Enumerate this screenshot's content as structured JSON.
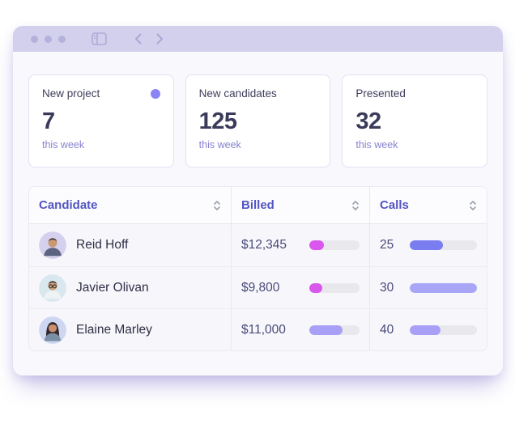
{
  "titlebar": {
    "icons": [
      "traffic-light-dots",
      "sidebar-toggle-icon",
      "back-chevron-icon",
      "forward-chevron-icon"
    ]
  },
  "stats": [
    {
      "label": "New project",
      "value": "7",
      "caption": "this week",
      "dot": true
    },
    {
      "label": "New candidates",
      "value": "125",
      "caption": "this week",
      "dot": false
    },
    {
      "label": "Presented",
      "value": "32",
      "caption": "this week",
      "dot": false
    }
  ],
  "table": {
    "columns": [
      {
        "label": "Candidate",
        "sortable": true
      },
      {
        "label": "Billed",
        "sortable": true
      },
      {
        "label": "Calls",
        "sortable": true
      }
    ],
    "rows": [
      {
        "name": "Reid Hoff",
        "billed": {
          "amount": "$12,345",
          "bar": {
            "pct": 29,
            "color": "#d957ec"
          }
        },
        "calls": {
          "value": "25",
          "bar": {
            "pct": 49,
            "color": "#7a7df0"
          }
        }
      },
      {
        "name": "Javier Olivan",
        "billed": {
          "amount": "$9,800",
          "bar": {
            "pct": 25,
            "color": "#d957ec"
          }
        },
        "calls": {
          "value": "30",
          "bar": {
            "pct": 100,
            "color": "#a9a6f8"
          }
        }
      },
      {
        "name": "Elaine Marley",
        "billed": {
          "amount": "$11,000",
          "bar": {
            "pct": 66,
            "color": "#a89ff7"
          }
        },
        "calls": {
          "value": "40",
          "bar": {
            "pct": 46,
            "color": "#a89ff7"
          }
        }
      }
    ]
  },
  "colors": {
    "accent_dot": "#8b84f6",
    "titlebar_bg": "#d2d0ed",
    "header_text": "#5355c2",
    "bar_track": "#e9e8ed",
    "magenta": "#d957ec",
    "purple": "#7a7df0",
    "light_purple": "#a89ff7"
  }
}
